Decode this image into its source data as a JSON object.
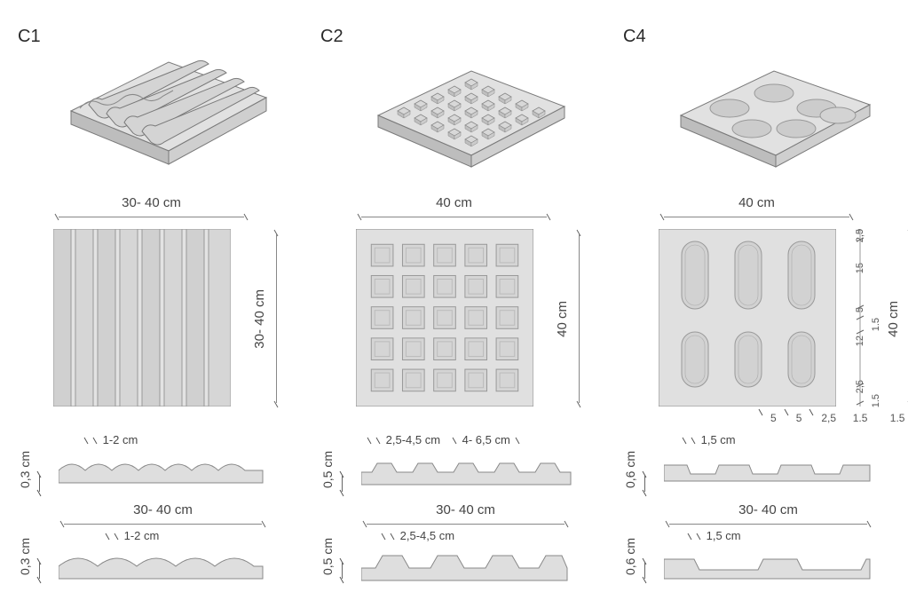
{
  "global": {
    "font_family": "Segoe UI Light, Helvetica Neue, Arial, sans-serif",
    "text_color": "#333333",
    "dim_color": "#666666",
    "stroke": "#7a7a7a",
    "fill_light": "#d8d8d8",
    "fill_mid": "#c7c7c7",
    "fill_dark": "#b5b5b5",
    "background": "#ffffff"
  },
  "tiles": [
    {
      "code": "C1",
      "type": "corrugated-ribs",
      "iso": {
        "ribs": 5
      },
      "plan": {
        "width_label": "30- 40 cm",
        "height_label": "30- 40 cm",
        "columns": 8
      },
      "section1": {
        "height_label": "0,3 cm",
        "top_dims": [
          "1-2 cm"
        ],
        "wave_count": 5
      },
      "section2": {
        "width_label": "30- 40 cm",
        "height_label": "0,3 cm",
        "top_dims": [
          "1-2 cm"
        ],
        "wave_count": 4
      }
    },
    {
      "code": "C2",
      "type": "truncated-dots-grid",
      "iso": {
        "grid": 5
      },
      "plan": {
        "width_label": "40 cm",
        "height_label": "40 cm",
        "grid": 5
      },
      "section1": {
        "height_label": "0,5 cm",
        "top_dims": [
          "2,5-4,5 cm",
          "4- 6,5 cm"
        ],
        "bump_count": 5
      },
      "section2": {
        "width_label": "30- 40 cm",
        "height_label": "0,5 cm",
        "top_dims": [
          "2,5-4,5 cm"
        ],
        "bump_count": 4
      }
    },
    {
      "code": "C4",
      "type": "lozenge-recesses",
      "iso": {
        "rows": 2,
        "cols": 3
      },
      "plan": {
        "width_label": "40 cm",
        "height_label": "40 cm",
        "rows": 2,
        "cols": 3,
        "right_detail_dims": [
          "2,5",
          "15",
          "5",
          "12",
          "2,5",
          "1.5",
          "1.5"
        ],
        "below_detail_dims": [
          "5",
          "5",
          "2,5",
          "1.5",
          "1.5"
        ]
      },
      "section1": {
        "height_label": "0,6 cm",
        "top_dims": [
          "1,5 cm"
        ],
        "notch_count": 3
      },
      "section2": {
        "width_label": "30- 40 cm",
        "height_label": "0,6 cm",
        "top_dims": [
          "1,5 cm"
        ],
        "notch_count": 2
      }
    }
  ]
}
